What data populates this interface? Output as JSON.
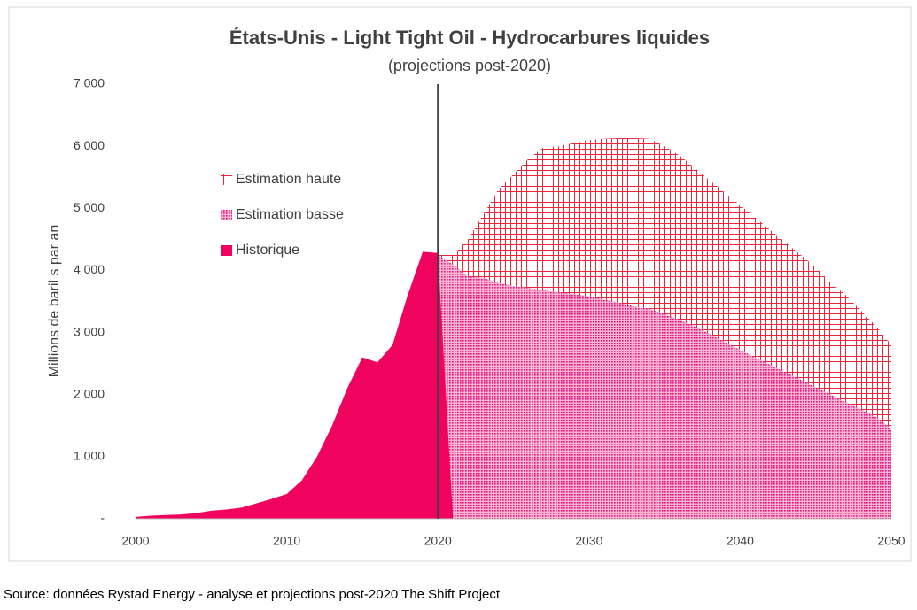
{
  "chart_data": {
    "type": "area",
    "title": "États-Unis - Light Tight Oil - Hydrocarbures liquides",
    "subtitle": "(projections post-2020)",
    "y_label": "Millions de baril s par an",
    "source": "Source: données Rystad Energy - analyse et projections post-2020  The Shift Project",
    "xlim": [
      2000,
      2050
    ],
    "xticks": [
      2000,
      2010,
      2020,
      2030,
      2040,
      2050
    ],
    "ylim": [
      0,
      7000
    ],
    "yticks": [
      {
        "value": 0,
        "label": "-"
      },
      {
        "value": 1000,
        "label": "1 000"
      },
      {
        "value": 2000,
        "label": "2 000"
      },
      {
        "value": 3000,
        "label": "3 000"
      },
      {
        "value": 4000,
        "label": "4 000"
      },
      {
        "value": 5000,
        "label": "5 000"
      },
      {
        "value": 6000,
        "label": "6 000"
      },
      {
        "value": 7000,
        "label": "7 000"
      }
    ],
    "reference_line_x": 2020,
    "legend": "upper left",
    "series": [
      {
        "name": "Estimation haute",
        "color": "#e8263c",
        "pattern": "grid",
        "x": [
          2020,
          2021,
          2022,
          2023,
          2024,
          2025,
          2026,
          2027,
          2028,
          2029,
          2030,
          2031,
          2032,
          2033,
          2034,
          2035,
          2036,
          2037,
          2038,
          2039,
          2040,
          2041,
          2042,
          2043,
          2044,
          2045,
          2046,
          2047,
          2048,
          2049,
          2050
        ],
        "values": [
          4250,
          4250,
          4500,
          4900,
          5300,
          5550,
          5800,
          5980,
          6000,
          6050,
          6100,
          6120,
          6130,
          6130,
          6120,
          6000,
          5850,
          5650,
          5450,
          5250,
          5050,
          4850,
          4650,
          4450,
          4250,
          4050,
          3800,
          3600,
          3350,
          3100,
          2800
        ]
      },
      {
        "name": "Estimation basse",
        "color": "#e8157a",
        "pattern": "dots",
        "x": [
          2020,
          2021,
          2022,
          2023,
          2024,
          2025,
          2026,
          2027,
          2028,
          2029,
          2030,
          2031,
          2032,
          2033,
          2034,
          2035,
          2036,
          2037,
          2038,
          2039,
          2040,
          2041,
          2042,
          2043,
          2044,
          2045,
          2046,
          2047,
          2048,
          2049,
          2050
        ],
        "values": [
          4250,
          4100,
          3900,
          3880,
          3800,
          3750,
          3720,
          3680,
          3650,
          3620,
          3580,
          3530,
          3480,
          3420,
          3380,
          3300,
          3200,
          3100,
          2980,
          2850,
          2720,
          2600,
          2480,
          2360,
          2240,
          2120,
          2000,
          1880,
          1760,
          1640,
          1450
        ]
      },
      {
        "name": "Historique",
        "color": "#f0035f",
        "pattern": "solid",
        "x": [
          2000,
          2001,
          2002,
          2003,
          2004,
          2005,
          2006,
          2007,
          2008,
          2009,
          2010,
          2011,
          2012,
          2013,
          2014,
          2015,
          2016,
          2017,
          2018,
          2019,
          2020,
          2021
        ],
        "values": [
          30,
          50,
          60,
          70,
          90,
          130,
          150,
          180,
          250,
          320,
          400,
          620,
          1000,
          1500,
          2100,
          2600,
          2520,
          2800,
          3600,
          4300,
          4280,
          0
        ]
      }
    ]
  }
}
